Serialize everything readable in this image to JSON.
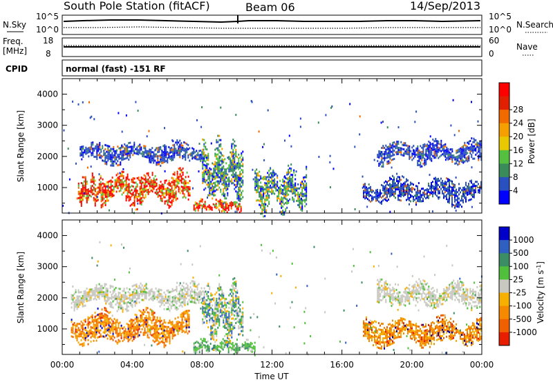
{
  "header": {
    "station": "South Pole Station (fitACF)",
    "beam": "Beam 06",
    "date": "14/Sep/2013"
  },
  "top_panels": {
    "nsky": {
      "label": "N.Sky",
      "y_ticks": [
        "10^5",
        "10^0"
      ],
      "right_label": "N.Search",
      "right_ticks": [
        "10^5",
        "10^0"
      ]
    },
    "freq": {
      "label_lines": [
        "Freq.",
        "[MHz]"
      ],
      "y_ticks": [
        "18",
        "8"
      ],
      "right_label": "Nave",
      "right_ticks": [
        "60",
        "0"
      ]
    },
    "cpid": {
      "label": "CPID",
      "text": "normal (fast) -151 RF"
    }
  },
  "colors": {
    "power_scale": [
      "#0000ff",
      "#2a4fbf",
      "#3a8a5a",
      "#55c040",
      "#e8c800",
      "#f5a000",
      "#f06a00",
      "#e02000",
      "#ff0000"
    ],
    "velocity_scale": [
      "#0000c8",
      "#2f5fc0",
      "#3c8c64",
      "#50bf3c",
      "#c8c8c0",
      "#f7b000",
      "#f58a00",
      "#f06000",
      "#e81e00"
    ]
  },
  "chart_data": [
    {
      "type": "heatmap",
      "title": "Power",
      "xlabel": "",
      "ylabel": "Slant Range [km]",
      "x_ticks": [
        "00:00",
        "04:00",
        "08:00",
        "12:00",
        "16:00",
        "20:00",
        "00:00"
      ],
      "xlim_hours": [
        0,
        24
      ],
      "y_ticks": [
        1000,
        2000,
        3000,
        4000
      ],
      "ylim": [
        180,
        4500
      ],
      "colorbar": {
        "label": "Power [dB]",
        "ticks": [
          "4",
          "8",
          "12",
          "16",
          "20",
          "24",
          "28"
        ]
      },
      "regions": [
        {
          "hour": [
            0.9,
            2.2
          ],
          "range": [
            500,
            1350
          ],
          "level": "high"
        },
        {
          "hour": [
            2.2,
            7.3
          ],
          "range": [
            500,
            1500
          ],
          "level": "high"
        },
        {
          "hour": [
            7.5,
            10.2
          ],
          "range": [
            250,
            600
          ],
          "level": "high"
        },
        {
          "hour": [
            1.0,
            8.1
          ],
          "range": [
            1800,
            2450
          ],
          "level": "low"
        },
        {
          "hour": [
            8.0,
            10.3
          ],
          "range": [
            600,
            2400
          ],
          "level": "mid"
        },
        {
          "hour": [
            11.0,
            14.0
          ],
          "range": [
            300,
            1600
          ],
          "level": "mid"
        },
        {
          "hour": [
            17.2,
            24.0
          ],
          "range": [
            500,
            1300
          ],
          "level": "low"
        },
        {
          "hour": [
            18.0,
            24.0
          ],
          "range": [
            1800,
            2500
          ],
          "level": "low"
        }
      ]
    },
    {
      "type": "heatmap",
      "title": "Velocity",
      "xlabel": "Time UT",
      "ylabel": "Slant Range [km]",
      "x_ticks": [
        "00:00",
        "04:00",
        "08:00",
        "12:00",
        "16:00",
        "20:00",
        "00:00"
      ],
      "xlim_hours": [
        0,
        24
      ],
      "y_ticks": [
        1000,
        2000,
        3000,
        4000
      ],
      "ylim": [
        180,
        4500
      ],
      "colorbar": {
        "label": "Velocity [m s^-1]",
        "ticks": [
          "1000",
          "500",
          "100",
          "25",
          "-25",
          "-100",
          "-500",
          "-1000"
        ]
      },
      "regions": [
        {
          "hour": [
            0.5,
            7.3
          ],
          "range": [
            550,
            1550
          ],
          "level": "negative"
        },
        {
          "hour": [
            0.5,
            8.1
          ],
          "range": [
            1700,
            2450
          ],
          "level": "near-zero"
        },
        {
          "hour": [
            7.5,
            11.0
          ],
          "range": [
            250,
            650
          ],
          "level": "positive"
        },
        {
          "hour": [
            8.0,
            10.3
          ],
          "range": [
            650,
            2400
          ],
          "level": "mixed"
        },
        {
          "hour": [
            18.0,
            24.0
          ],
          "range": [
            1750,
            2500
          ],
          "level": "near-zero"
        },
        {
          "hour": [
            17.2,
            24.0
          ],
          "range": [
            500,
            1350
          ],
          "level": "negative"
        }
      ]
    }
  ]
}
